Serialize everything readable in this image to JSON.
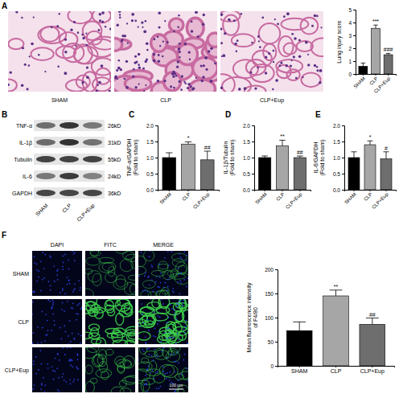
{
  "figure": {
    "panel_labels": [
      "A",
      "B",
      "C",
      "D",
      "E",
      "F"
    ],
    "histology_groups": [
      "SHAM",
      "CLP",
      "CLP+Eup"
    ],
    "blot": {
      "proteins": [
        "TNF-α",
        "IL-1β",
        "Tubulin",
        "IL-6",
        "GAPDH"
      ],
      "sizes": [
        "26kD",
        "31kD",
        "55kD",
        "24kD",
        "36kD"
      ],
      "lanes": [
        "SHAM",
        "CLP",
        "CLP+Eup"
      ]
    },
    "fluorescence": {
      "channels": [
        "DAPI",
        "FITC",
        "MERGE"
      ],
      "groups": [
        "SHAM",
        "CLP",
        "CLP+Eup"
      ],
      "scale_bar": "100 μm"
    }
  },
  "chart_data": [
    {
      "type": "bar",
      "y_label": [
        "Lung injury score"
      ],
      "categories": [
        "SHAM",
        "CLP",
        "CLP+Eup"
      ],
      "values": [
        0.6,
        3.55,
        1.5
      ],
      "errors": [
        0.25,
        0.25,
        0.1
      ],
      "colors": [
        "#000000",
        "#a6a6a6",
        "#6e6e6e"
      ],
      "annotations": [
        null,
        "***",
        "###"
      ],
      "ylim": [
        0,
        5
      ],
      "yticks": [
        0,
        1,
        2,
        3,
        4,
        5
      ]
    },
    {
      "type": "bar",
      "y_label": [
        "TNF-α/GAPDH",
        "(Fold to sham)"
      ],
      "categories": [
        "SHAM",
        "CLP",
        "CLP+Eup"
      ],
      "values": [
        1.0,
        1.42,
        0.93
      ],
      "errors": [
        0.15,
        0.07,
        0.27
      ],
      "colors": [
        "#000000",
        "#a6a6a6",
        "#6e6e6e"
      ],
      "annotations": [
        null,
        "*",
        "##"
      ],
      "ylim": [
        0,
        2
      ],
      "yticks": [
        {
          "value": 0,
          "label": "0.0"
        },
        0.5,
        {
          "value": 1,
          "label": "1.0"
        },
        1.5,
        {
          "value": 2,
          "label": "2.0"
        }
      ]
    },
    {
      "type": "bar",
      "y_label": [
        "IL-1β/Tubulin",
        "(Fold to sham)"
      ],
      "categories": [
        "SHAM",
        "CLP",
        "CLP+Eup"
      ],
      "values": [
        1.0,
        1.37,
        1.0
      ],
      "errors": [
        0.05,
        0.17,
        0.05
      ],
      "colors": [
        "#000000",
        "#a6a6a6",
        "#6e6e6e"
      ],
      "annotations": [
        null,
        "**",
        "##"
      ],
      "ylim": [
        0,
        2
      ],
      "yticks": [
        {
          "value": 0,
          "label": "0.0"
        },
        0.5,
        {
          "value": 1,
          "label": "1.0"
        },
        1.5,
        {
          "value": 2,
          "label": "2.0"
        }
      ]
    },
    {
      "type": "bar",
      "y_label": [
        "IL-6/GAPDH",
        "(Fold to sham)"
      ],
      "categories": [
        "SHAM",
        "CLP",
        "CLP+Eup"
      ],
      "values": [
        1.0,
        1.4,
        0.96
      ],
      "errors": [
        0.18,
        0.12,
        0.22
      ],
      "colors": [
        "#000000",
        "#a6a6a6",
        "#6e6e6e"
      ],
      "annotations": [
        null,
        "*",
        "#"
      ],
      "ylim": [
        0,
        2
      ],
      "yticks": [
        {
          "value": 0,
          "label": "0.0"
        },
        0.5,
        {
          "value": 1,
          "label": "1.0"
        },
        1.5,
        {
          "value": 2,
          "label": "2.0"
        }
      ]
    },
    {
      "type": "bar",
      "y_label": [
        "Mean fluorescence intensity",
        "of F4/80"
      ],
      "categories": [
        "SHAM",
        "CLP",
        "CLP+Eup"
      ],
      "values": [
        73,
        145,
        86
      ],
      "errors": [
        18,
        12,
        13
      ],
      "colors": [
        "#000000",
        "#a6a6a6",
        "#6e6e6e"
      ],
      "annotations": [
        null,
        "**",
        "##"
      ],
      "ylim": [
        0,
        200
      ],
      "yticks": [
        0,
        50,
        100,
        150,
        200
      ]
    }
  ]
}
